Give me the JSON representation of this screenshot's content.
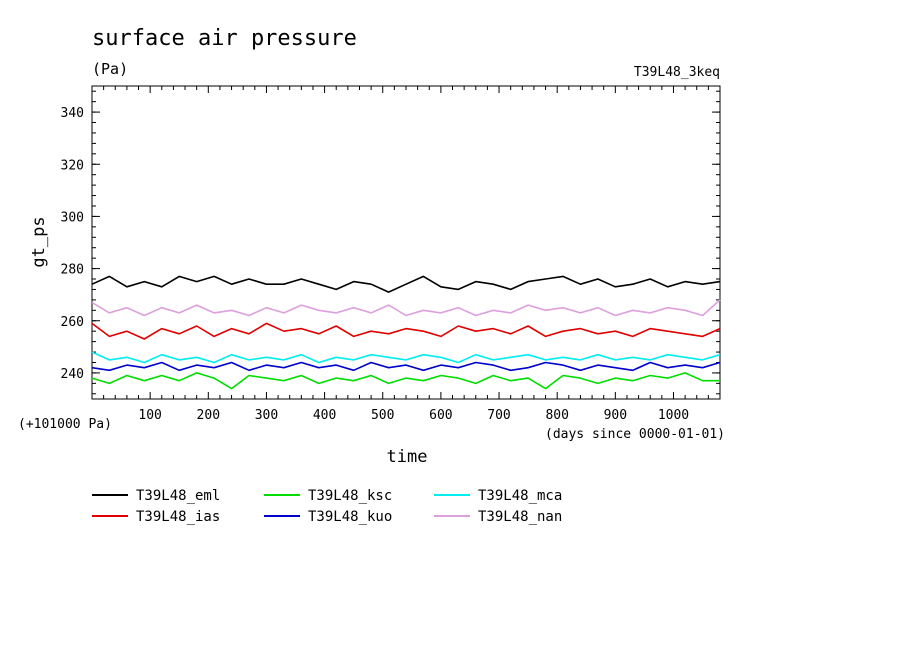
{
  "chart_data": {
    "type": "line",
    "title": "surface air pressure",
    "unit_label": "(Pa)",
    "run_label": "T39L48_3keq",
    "xlabel": "time",
    "xlabel_note": "(days since 0000-01-01)",
    "ylabel": "gt_ps",
    "y_offset_label": "(+101000 Pa)",
    "xlim": [
      0,
      1080
    ],
    "ylim": [
      230,
      350
    ],
    "x_ticks": [
      100,
      200,
      300,
      400,
      500,
      600,
      700,
      800,
      900,
      1000
    ],
    "x_tick_labels": [
      "100",
      "200",
      "300",
      "400",
      "500",
      "600",
      "700",
      "800",
      "900",
      "1000"
    ],
    "y_ticks": [
      240,
      260,
      280,
      300,
      320,
      340
    ],
    "y_tick_labels": [
      "240",
      "260",
      "280",
      "300",
      "320",
      "340"
    ],
    "grid": false,
    "legend_position": "bottom-left",
    "series": [
      {
        "name": "T39L48_eml",
        "color": "#000000",
        "x": [
          0,
          30,
          60,
          90,
          120,
          150,
          180,
          210,
          240,
          270,
          300,
          330,
          360,
          390,
          420,
          450,
          480,
          510,
          540,
          570,
          600,
          630,
          660,
          690,
          720,
          750,
          780,
          810,
          840,
          870,
          900,
          930,
          960,
          990,
          1020,
          1050,
          1080
        ],
        "y": [
          274,
          277,
          273,
          275,
          273,
          277,
          275,
          277,
          274,
          276,
          274,
          274,
          276,
          274,
          272,
          275,
          274,
          271,
          274,
          277,
          273,
          272,
          275,
          274,
          272,
          275,
          276,
          277,
          274,
          276,
          273,
          274,
          276,
          273,
          275,
          274,
          275
        ]
      },
      {
        "name": "T39L48_ias",
        "color": "#e00000",
        "x": [
          0,
          30,
          60,
          90,
          120,
          150,
          180,
          210,
          240,
          270,
          300,
          330,
          360,
          390,
          420,
          450,
          480,
          510,
          540,
          570,
          600,
          630,
          660,
          690,
          720,
          750,
          780,
          810,
          840,
          870,
          900,
          930,
          960,
          990,
          1020,
          1050,
          1080
        ],
        "y": [
          259,
          254,
          256,
          253,
          257,
          255,
          258,
          254,
          257,
          255,
          259,
          256,
          257,
          255,
          258,
          254,
          256,
          255,
          257,
          256,
          254,
          258,
          256,
          257,
          255,
          258,
          254,
          256,
          257,
          255,
          256,
          254,
          257,
          256,
          255,
          254,
          257
        ]
      },
      {
        "name": "T39L48_ksc",
        "color": "#00dd00",
        "x": [
          0,
          30,
          60,
          90,
          120,
          150,
          180,
          210,
          240,
          270,
          300,
          330,
          360,
          390,
          420,
          450,
          480,
          510,
          540,
          570,
          600,
          630,
          660,
          690,
          720,
          750,
          780,
          810,
          840,
          870,
          900,
          930,
          960,
          990,
          1020,
          1050,
          1080
        ],
        "y": [
          238,
          236,
          239,
          237,
          239,
          237,
          240,
          238,
          234,
          239,
          238,
          237,
          239,
          236,
          238,
          237,
          239,
          236,
          238,
          237,
          239,
          238,
          236,
          239,
          237,
          238,
          234,
          239,
          238,
          236,
          238,
          237,
          239,
          238,
          240,
          237,
          237
        ]
      },
      {
        "name": "T39L48_kuo",
        "color": "#0000cc",
        "x": [
          0,
          30,
          60,
          90,
          120,
          150,
          180,
          210,
          240,
          270,
          300,
          330,
          360,
          390,
          420,
          450,
          480,
          510,
          540,
          570,
          600,
          630,
          660,
          690,
          720,
          750,
          780,
          810,
          840,
          870,
          900,
          930,
          960,
          990,
          1020,
          1050,
          1080
        ],
        "y": [
          242,
          241,
          243,
          242,
          244,
          241,
          243,
          242,
          244,
          241,
          243,
          242,
          244,
          242,
          243,
          241,
          244,
          242,
          243,
          241,
          243,
          242,
          244,
          243,
          241,
          242,
          244,
          243,
          241,
          243,
          242,
          241,
          244,
          242,
          243,
          242,
          244
        ]
      },
      {
        "name": "T39L48_mca",
        "color": "#00eeee",
        "x": [
          0,
          30,
          60,
          90,
          120,
          150,
          180,
          210,
          240,
          270,
          300,
          330,
          360,
          390,
          420,
          450,
          480,
          510,
          540,
          570,
          600,
          630,
          660,
          690,
          720,
          750,
          780,
          810,
          840,
          870,
          900,
          930,
          960,
          990,
          1020,
          1050,
          1080
        ],
        "y": [
          248,
          245,
          246,
          244,
          247,
          245,
          246,
          244,
          247,
          245,
          246,
          245,
          247,
          244,
          246,
          245,
          247,
          246,
          245,
          247,
          246,
          244,
          247,
          245,
          246,
          247,
          245,
          246,
          245,
          247,
          245,
          246,
          245,
          247,
          246,
          245,
          247
        ]
      },
      {
        "name": "T39L48_nan",
        "color": "#dda0dd",
        "x": [
          0,
          30,
          60,
          90,
          120,
          150,
          180,
          210,
          240,
          270,
          300,
          330,
          360,
          390,
          420,
          450,
          480,
          510,
          540,
          570,
          600,
          630,
          660,
          690,
          720,
          750,
          780,
          810,
          840,
          870,
          900,
          930,
          960,
          990,
          1020,
          1050,
          1080
        ],
        "y": [
          267,
          263,
          265,
          262,
          265,
          263,
          266,
          263,
          264,
          262,
          265,
          263,
          266,
          264,
          263,
          265,
          263,
          266,
          262,
          264,
          263,
          265,
          262,
          264,
          263,
          266,
          264,
          265,
          263,
          265,
          262,
          264,
          263,
          265,
          264,
          262,
          268
        ]
      }
    ]
  }
}
